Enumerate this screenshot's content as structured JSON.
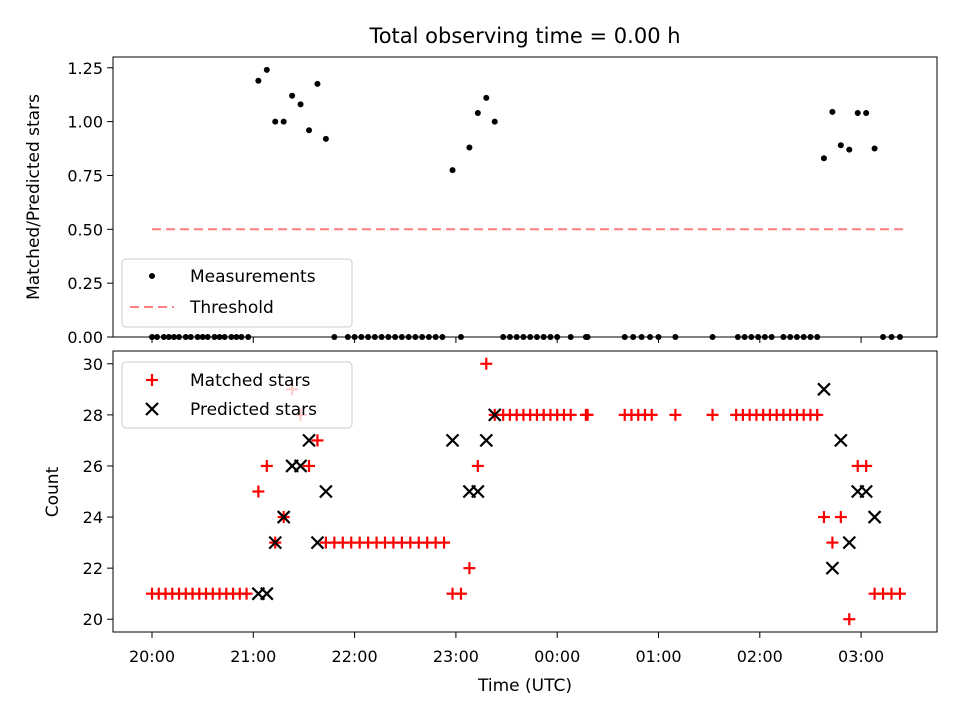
{
  "chart_data": [
    {
      "type": "scatter",
      "title": "Total observing time = 0.00 h",
      "xlabel": "",
      "ylabel": "Matched/Predicted stars",
      "ylim": [
        0,
        1.3
      ],
      "yticks": [
        "0.00",
        "0.25",
        "0.50",
        "0.75",
        "1.00",
        "1.25"
      ],
      "ytick_values": [
        0,
        0.25,
        0.5,
        0.75,
        1.0,
        1.25
      ],
      "legend_position": "lower-left",
      "grid": false,
      "series": [
        {
          "name": "Measurements",
          "marker": "dot",
          "color": "#000000",
          "points": [
            [
              "20:00",
              0
            ],
            [
              "20:03",
              0
            ],
            [
              "20:07",
              0
            ],
            [
              "20:10",
              0
            ],
            [
              "20:13",
              0
            ],
            [
              "20:16",
              0
            ],
            [
              "20:20",
              0
            ],
            [
              "20:23",
              0
            ],
            [
              "20:27",
              0
            ],
            [
              "20:30",
              0
            ],
            [
              "20:33",
              0
            ],
            [
              "20:37",
              0
            ],
            [
              "20:40",
              0
            ],
            [
              "20:43",
              0
            ],
            [
              "20:47",
              0
            ],
            [
              "20:50",
              0
            ],
            [
              "20:53",
              0
            ],
            [
              "20:57",
              0
            ],
            [
              "21:03",
              1.19
            ],
            [
              "21:08",
              1.24
            ],
            [
              "21:13",
              1.0
            ],
            [
              "21:18",
              1.0
            ],
            [
              "21:23",
              1.12
            ],
            [
              "21:28",
              1.08
            ],
            [
              "21:33",
              0.96
            ],
            [
              "21:38",
              1.175
            ],
            [
              "21:43",
              0.92
            ],
            [
              "21:48",
              0
            ],
            [
              "21:56",
              0
            ],
            [
              "22:00",
              0
            ],
            [
              "22:04",
              0
            ],
            [
              "22:08",
              0
            ],
            [
              "22:12",
              0
            ],
            [
              "22:16",
              0
            ],
            [
              "22:20",
              0
            ],
            [
              "22:24",
              0
            ],
            [
              "22:28",
              0
            ],
            [
              "22:32",
              0
            ],
            [
              "22:36",
              0
            ],
            [
              "22:40",
              0
            ],
            [
              "22:44",
              0
            ],
            [
              "22:48",
              0
            ],
            [
              "22:52",
              0
            ],
            [
              "22:58",
              0.775
            ],
            [
              "23:03",
              0
            ],
            [
              "23:08",
              0.88
            ],
            [
              "23:13",
              1.04
            ],
            [
              "23:18",
              1.11
            ],
            [
              "23:23",
              1.0
            ],
            [
              "23:28",
              0
            ],
            [
              "23:32",
              0
            ],
            [
              "23:36",
              0
            ],
            [
              "23:40",
              0
            ],
            [
              "23:44",
              0
            ],
            [
              "23:48",
              0
            ],
            [
              "23:52",
              0
            ],
            [
              "23:56",
              0
            ],
            [
              "00:00",
              0
            ],
            [
              "00:08",
              0
            ],
            [
              "00:17",
              0
            ],
            [
              "00:18",
              0
            ],
            [
              "00:40",
              0
            ],
            [
              "00:45",
              0
            ],
            [
              "00:50",
              0
            ],
            [
              "00:55",
              0
            ],
            [
              "01:00",
              0
            ],
            [
              "01:10",
              0
            ],
            [
              "01:32",
              0
            ],
            [
              "01:47",
              0
            ],
            [
              "01:51",
              0
            ],
            [
              "01:55",
              0
            ],
            [
              "01:59",
              0
            ],
            [
              "02:03",
              0
            ],
            [
              "02:07",
              0
            ],
            [
              "02:14",
              0
            ],
            [
              "02:18",
              0
            ],
            [
              "02:22",
              0
            ],
            [
              "02:26",
              0
            ],
            [
              "02:30",
              0
            ],
            [
              "02:34",
              0
            ],
            [
              "02:38",
              0.83
            ],
            [
              "02:43",
              1.045
            ],
            [
              "02:48",
              0.89
            ],
            [
              "02:53",
              0.87
            ],
            [
              "02:58",
              1.04
            ],
            [
              "03:03",
              1.04
            ],
            [
              "03:08",
              0.875
            ],
            [
              "03:13",
              0
            ],
            [
              "03:18",
              0
            ],
            [
              "03:23",
              0
            ]
          ]
        },
        {
          "name": "Threshold",
          "marker": "dashed-line",
          "color": "#ff7f7f",
          "points": [
            [
              "20:00",
              0.5
            ],
            [
              "03:25",
              0.5
            ]
          ]
        }
      ]
    },
    {
      "type": "scatter",
      "title": "",
      "xlabel": "Time (UTC)",
      "ylabel": "Count",
      "ylim": [
        19.5,
        30.5
      ],
      "yticks": [
        "20",
        "22",
        "24",
        "26",
        "28",
        "30"
      ],
      "ytick_values": [
        20,
        22,
        24,
        26,
        28,
        30
      ],
      "xticks": [
        "20:00",
        "21:00",
        "22:00",
        "23:00",
        "00:00",
        "01:00",
        "02:00",
        "03:00"
      ],
      "legend_position": "top-left",
      "grid": false,
      "series": [
        {
          "name": "Matched stars",
          "marker": "plus",
          "color": "#ff0000",
          "points": [
            [
              "20:00",
              21
            ],
            [
              "20:04",
              21
            ],
            [
              "20:08",
              21
            ],
            [
              "20:12",
              21
            ],
            [
              "20:16",
              21
            ],
            [
              "20:20",
              21
            ],
            [
              "20:24",
              21
            ],
            [
              "20:28",
              21
            ],
            [
              "20:32",
              21
            ],
            [
              "20:36",
              21
            ],
            [
              "20:40",
              21
            ],
            [
              "20:44",
              21
            ],
            [
              "20:48",
              21
            ],
            [
              "20:52",
              21
            ],
            [
              "20:56",
              21
            ],
            [
              "21:03",
              25
            ],
            [
              "21:08",
              26
            ],
            [
              "21:13",
              23
            ],
            [
              "21:18",
              24
            ],
            [
              "21:23",
              29
            ],
            [
              "21:28",
              28
            ],
            [
              "21:33",
              26
            ],
            [
              "21:38",
              27
            ],
            [
              "21:43",
              23
            ],
            [
              "21:48",
              23
            ],
            [
              "21:53",
              23
            ],
            [
              "21:58",
              23
            ],
            [
              "22:03",
              23
            ],
            [
              "22:08",
              23
            ],
            [
              "22:13",
              23
            ],
            [
              "22:18",
              23
            ],
            [
              "22:23",
              23
            ],
            [
              "22:28",
              23
            ],
            [
              "22:33",
              23
            ],
            [
              "22:38",
              23
            ],
            [
              "22:43",
              23
            ],
            [
              "22:48",
              23
            ],
            [
              "22:53",
              23
            ],
            [
              "22:58",
              21
            ],
            [
              "23:03",
              21
            ],
            [
              "23:08",
              22
            ],
            [
              "23:13",
              26
            ],
            [
              "23:18",
              30
            ],
            [
              "23:23",
              28
            ],
            [
              "23:28",
              28
            ],
            [
              "23:32",
              28
            ],
            [
              "23:36",
              28
            ],
            [
              "23:40",
              28
            ],
            [
              "23:44",
              28
            ],
            [
              "23:48",
              28
            ],
            [
              "23:52",
              28
            ],
            [
              "23:56",
              28
            ],
            [
              "00:00",
              28
            ],
            [
              "00:04",
              28
            ],
            [
              "00:08",
              28
            ],
            [
              "00:17",
              28
            ],
            [
              "00:18",
              28
            ],
            [
              "00:40",
              28
            ],
            [
              "00:44",
              28
            ],
            [
              "00:48",
              28
            ],
            [
              "00:52",
              28
            ],
            [
              "00:56",
              28
            ],
            [
              "01:10",
              28
            ],
            [
              "01:32",
              28
            ],
            [
              "01:46",
              28
            ],
            [
              "01:50",
              28
            ],
            [
              "01:54",
              28
            ],
            [
              "01:58",
              28
            ],
            [
              "02:02",
              28
            ],
            [
              "02:06",
              28
            ],
            [
              "02:10",
              28
            ],
            [
              "02:14",
              28
            ],
            [
              "02:18",
              28
            ],
            [
              "02:22",
              28
            ],
            [
              "02:26",
              28
            ],
            [
              "02:30",
              28
            ],
            [
              "02:34",
              28
            ],
            [
              "02:38",
              24
            ],
            [
              "02:43",
              23
            ],
            [
              "02:48",
              24
            ],
            [
              "02:53",
              20
            ],
            [
              "02:58",
              26
            ],
            [
              "03:03",
              26
            ],
            [
              "03:08",
              21
            ],
            [
              "03:13",
              21
            ],
            [
              "03:18",
              21
            ],
            [
              "03:23",
              21
            ]
          ]
        },
        {
          "name": "Predicted stars",
          "marker": "x",
          "color": "#000000",
          "points": [
            [
              "21:03",
              21
            ],
            [
              "21:08",
              21
            ],
            [
              "21:13",
              23
            ],
            [
              "21:18",
              24
            ],
            [
              "21:23",
              26
            ],
            [
              "21:28",
              26
            ],
            [
              "21:33",
              27
            ],
            [
              "21:38",
              23
            ],
            [
              "21:43",
              25
            ],
            [
              "22:58",
              27
            ],
            [
              "23:08",
              25
            ],
            [
              "23:13",
              25
            ],
            [
              "23:18",
              27
            ],
            [
              "23:23",
              28
            ],
            [
              "02:38",
              29
            ],
            [
              "02:43",
              22
            ],
            [
              "02:48",
              27
            ],
            [
              "02:53",
              23
            ],
            [
              "02:58",
              25
            ],
            [
              "03:03",
              25
            ],
            [
              "03:08",
              24
            ]
          ]
        }
      ]
    }
  ]
}
